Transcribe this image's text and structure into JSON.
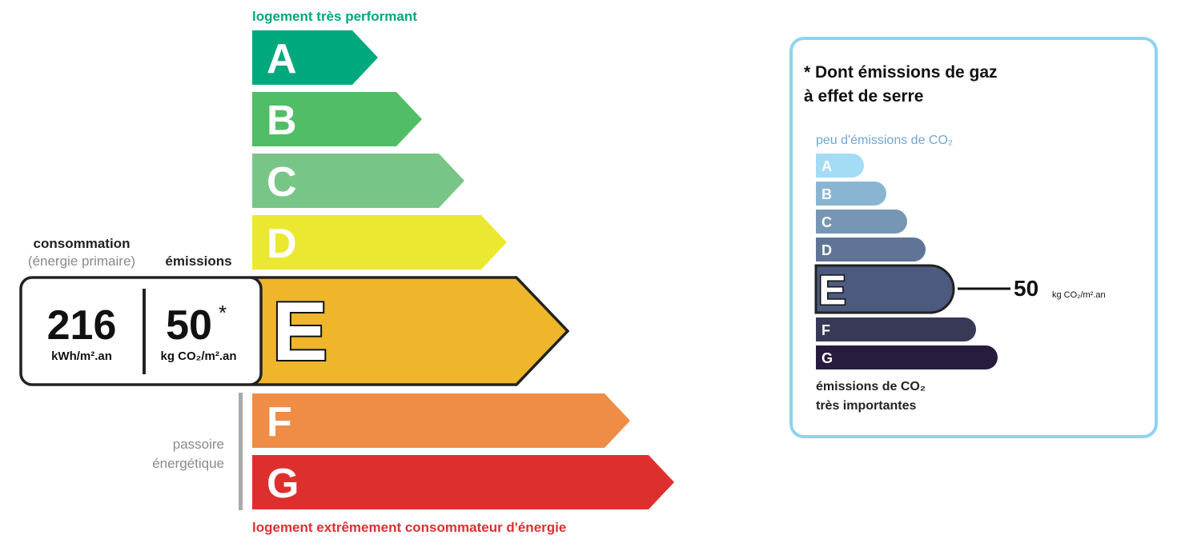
{
  "energy": {
    "top_label": "logement très performant",
    "bottom_label": "logement extrêmement consommateur d'énergie",
    "classes": [
      {
        "letter": "A",
        "color": "#00a87e"
      },
      {
        "letter": "B",
        "color": "#52bd67"
      },
      {
        "letter": "C",
        "color": "#78c687"
      },
      {
        "letter": "D",
        "color": "#ebe832"
      },
      {
        "letter": "E",
        "color": "#efb52b"
      },
      {
        "letter": "F",
        "color": "#ef8c46"
      },
      {
        "letter": "G",
        "color": "#de2f2f"
      }
    ],
    "current_class": "E",
    "passoire_line1": "passoire",
    "passoire_line2": "énergétique",
    "consumption_heading": "consommation",
    "consumption_subheading": "(énergie primaire)",
    "consumption_value": "216",
    "consumption_unit": "kWh/m².an",
    "emissions_heading": "émissions",
    "emissions_value": "50",
    "emissions_asterisk": "*",
    "emissions_unit": "kg CO₂/m².an"
  },
  "ghg": {
    "title_line1": "* Dont émissions de gaz",
    "title_line2": "à effet de serre",
    "top_label": "peu d'émissions de CO₂",
    "bottom_label_line1": "émissions de CO₂",
    "bottom_label_line2": "très importantes",
    "classes": [
      {
        "letter": "A",
        "color": "#a3dcf4"
      },
      {
        "letter": "B",
        "color": "#8ab5d2"
      },
      {
        "letter": "C",
        "color": "#7796b4"
      },
      {
        "letter": "D",
        "color": "#607596"
      },
      {
        "letter": "E",
        "color": "#4b5a7e"
      },
      {
        "letter": "F",
        "color": "#383857"
      },
      {
        "letter": "G",
        "color": "#271c3d"
      }
    ],
    "current_class": "E",
    "value": "50",
    "unit": "kg CO₂/m².an",
    "border_color": "#8fd3f2"
  }
}
